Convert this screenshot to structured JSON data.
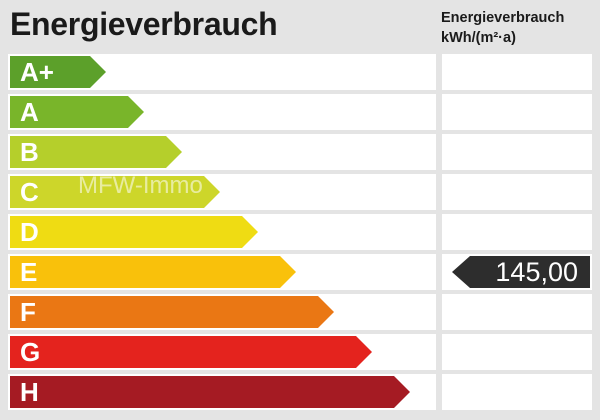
{
  "title": "Energieverbrauch",
  "unit_header": {
    "line1": "Energieverbrauch",
    "line2": "kWh/(m²·a)"
  },
  "watermark": "MFW-Immo",
  "classes": [
    {
      "label": "A+",
      "color": "#5ca02a"
    },
    {
      "label": "A",
      "color": "#79b52a"
    },
    {
      "label": "B",
      "color": "#b5cf2b"
    },
    {
      "label": "C",
      "color": "#cdd62a"
    },
    {
      "label": "D",
      "color": "#efdc13"
    },
    {
      "label": "E",
      "color": "#f9c10b"
    },
    {
      "label": "F",
      "color": "#ea7714"
    },
    {
      "label": "G",
      "color": "#e4231e"
    },
    {
      "label": "H",
      "color": "#a51b23"
    }
  ],
  "marker": {
    "class_index": 5,
    "value": "145,00",
    "color": "#2d2d2d"
  }
}
